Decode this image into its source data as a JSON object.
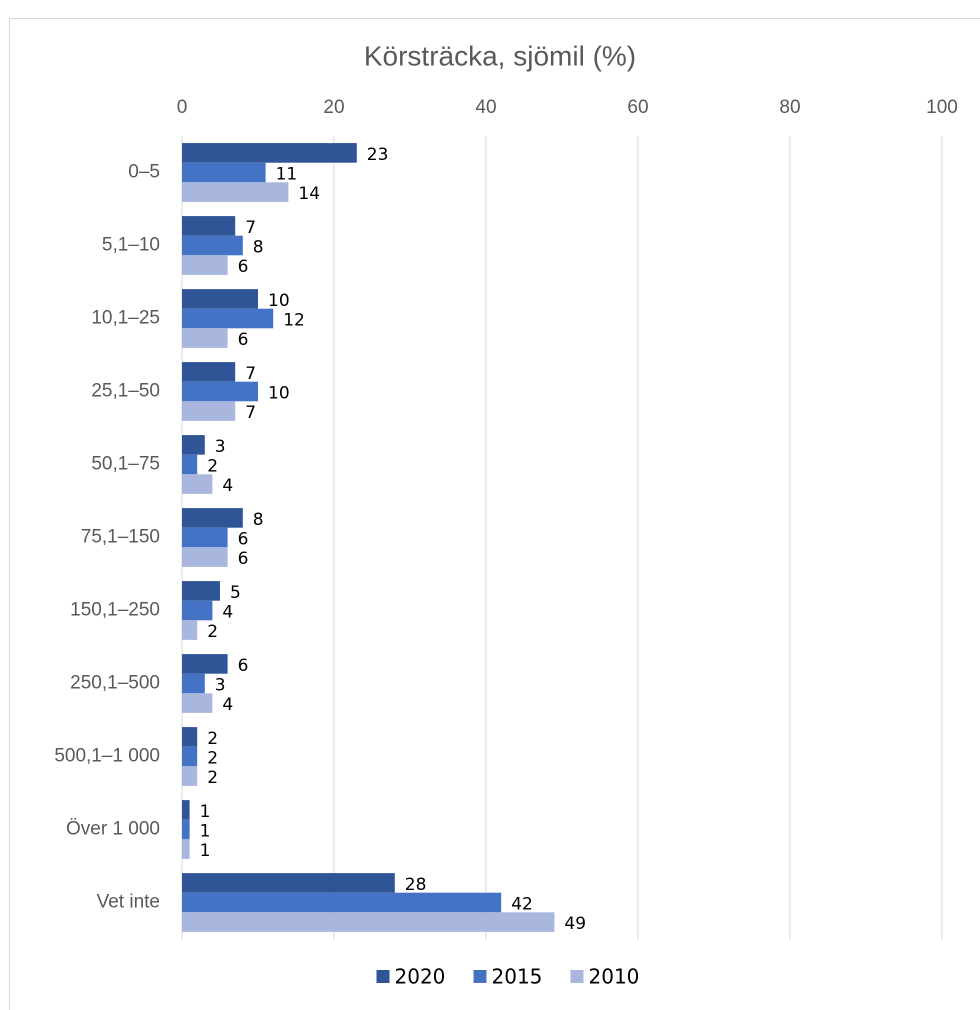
{
  "chart_data": {
    "type": "hbar",
    "title": "Körsträcka, sjömil (%)",
    "categories": [
      "0–5",
      "5,1–10",
      "10,1–25",
      "25,1–50",
      "50,1–75",
      "75,1–150",
      "150,1–250",
      "250,1–500",
      "500,1–1 000",
      "Över 1 000",
      "Vet inte"
    ],
    "series": [
      {
        "name": "2020",
        "color": "#2f5597",
        "values": [
          23,
          7,
          10,
          7,
          3,
          8,
          5,
          6,
          2,
          1,
          28
        ]
      },
      {
        "name": "2015",
        "color": "#4472c4",
        "values": [
          11,
          8,
          12,
          10,
          2,
          6,
          4,
          3,
          2,
          1,
          42
        ]
      },
      {
        "name": "2010",
        "color": "#a9b7df",
        "values": [
          14,
          6,
          6,
          7,
          4,
          6,
          2,
          4,
          2,
          1,
          49
        ]
      }
    ],
    "xlim": [
      0,
      100
    ],
    "xticks": [
      0,
      20,
      40,
      60,
      80,
      100
    ],
    "grid": true,
    "legend": "bottom"
  }
}
